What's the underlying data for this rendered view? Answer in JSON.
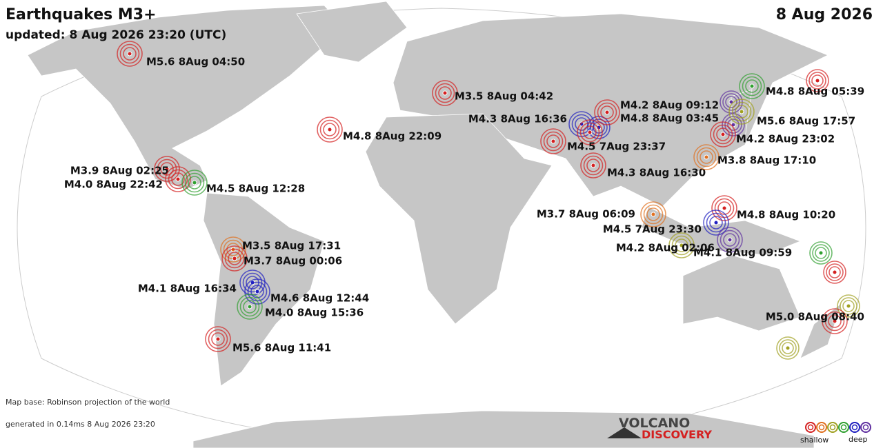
{
  "header": {
    "title": "Earthquakes M3+",
    "updated": "updated:  8 Aug 2026 23:20 (UTC)",
    "date": "8 Aug 2026"
  },
  "quakes": [
    {
      "label": "M5.6 8Aug 04:50",
      "color": "#d42020"
    },
    {
      "label": "M3.5 8Aug 04:42",
      "color": "#d42020"
    },
    {
      "label": "M4.8 8Aug 22:09",
      "color": "#d42020"
    },
    {
      "label": "M4.3 8Aug 16:36",
      "color": "#2020c0"
    },
    {
      "label": "M4.2 8Aug 09:12",
      "color": "#d42020"
    },
    {
      "label": "M4.8 8Aug 03:45",
      "color": "#d42020"
    },
    {
      "label": "M4.5 7Aug 23:37",
      "color": "#d42020"
    },
    {
      "label": "M4.3 8Aug 16:30",
      "color": "#d42020"
    },
    {
      "label": "M4.8 8Aug 05:39",
      "color": "#30a030"
    },
    {
      "label": "M5.6 8Aug 17:57",
      "color": "#a0a020"
    },
    {
      "label": "M4.2 8Aug 23:02",
      "color": "#d42020"
    },
    {
      "label": "M3.8 8Aug 17:10",
      "color": "#e07020"
    },
    {
      "label": "M3.9 8Aug 02:25",
      "color": "#d42020"
    },
    {
      "label": "M4.0 8Aug 22:42",
      "color": "#d42020"
    },
    {
      "label": "M4.5 8Aug 12:28",
      "color": "#30a030"
    },
    {
      "label": "M3.7 8Aug 06:09",
      "color": "#e07020"
    },
    {
      "label": "M4.8 8Aug 10:20",
      "color": "#d42020"
    },
    {
      "label": "M4.5 7Aug 23:30",
      "color": "#2020c0"
    },
    {
      "label": "M4.2 8Aug 02:06",
      "color": "#a0a020"
    },
    {
      "label": "M4.1 8Aug 09:59",
      "color": "#6030a0"
    },
    {
      "label": "M3.5 8Aug 17:31",
      "color": "#e07020"
    },
    {
      "label": "M3.7 8Aug 00:06",
      "color": "#d42020"
    },
    {
      "label": "M4.1 8Aug 16:34",
      "color": "#2020c0"
    },
    {
      "label": "M4.6 8Aug 12:44",
      "color": "#2020c0"
    },
    {
      "label": "M4.0 8Aug 15:36",
      "color": "#30a030"
    },
    {
      "label": "M5.6 8Aug 11:41",
      "color": "#d42020"
    },
    {
      "label": "M5.0 8Aug 08:40",
      "color": "#d42020"
    }
  ],
  "footer": {
    "map_base": "Map base: Robinson projection of the world",
    "generated": "generated in 0.14ms 8 Aug 2026 23:20",
    "logo_top": "VOLCANO",
    "logo_bottom": "DISCOVERY",
    "legend_shallow": "shallow",
    "legend_deep": "deep"
  }
}
